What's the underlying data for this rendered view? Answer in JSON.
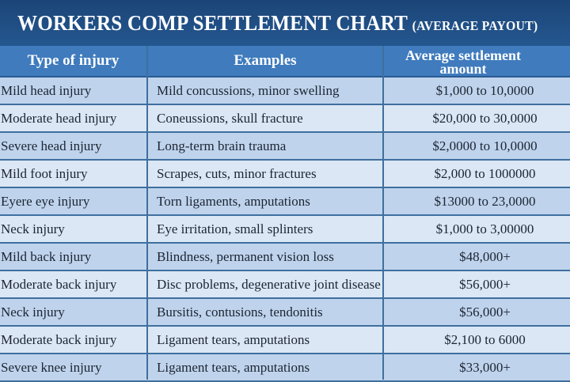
{
  "title": "WORKERS COMP SETTLEMENT CHART",
  "subtitle": "(AVERAGE PAYOUT)",
  "headers": [
    "Type of injury",
    "Examples",
    "Average settlement amount"
  ],
  "colors": {
    "title_band": "#1f4f86",
    "header": "#3f7bbd",
    "row_dark": "#bfd4ec",
    "row_light": "#dbe7f5"
  },
  "rows": [
    {
      "type": "Mild head injury",
      "examples": "Mild concussions, minor swelling",
      "amount": "$1,000 to 10,0000"
    },
    {
      "type": "Moderate head injury",
      "examples": "Coneussions, skull fracture",
      "amount": "$20,000 to 30,0000"
    },
    {
      "type": "Severe head injury",
      "examples": "Long-term brain trauma",
      "amount": "$2,0000 to 10,0000"
    },
    {
      "type": "Mild foot injury",
      "examples": "Scrapes, cuts, minor fractures",
      "amount": "$2,000 to 1000000"
    },
    {
      "type": "Eyere eye injury",
      "examples": "Torn ligaments, amputations",
      "amount": "$13000 to 23,0000"
    },
    {
      "type": "Neck injury",
      "examples": "Eye irritation, small splinters",
      "amount": "$1,000 to 3,00000"
    },
    {
      "type": "Mild back injury",
      "examples": "Blindness, permanent vision loss",
      "amount": "$48,000+"
    },
    {
      "type": "Moderate back injury",
      "examples": "Disc problems, degenerative joint disease",
      "amount": "$56,000+"
    },
    {
      "type": "Neck injury",
      "examples": "Bursitis, contusions, tendonitis",
      "amount": "$56,000+"
    },
    {
      "type": "Moderate back injury",
      "examples": "Ligament tears, amputations",
      "amount": "$2,100 to 6000"
    },
    {
      "type": "Severe knee injury",
      "examples": "Ligament tears, amputations",
      "amount": "$33,000+"
    }
  ]
}
